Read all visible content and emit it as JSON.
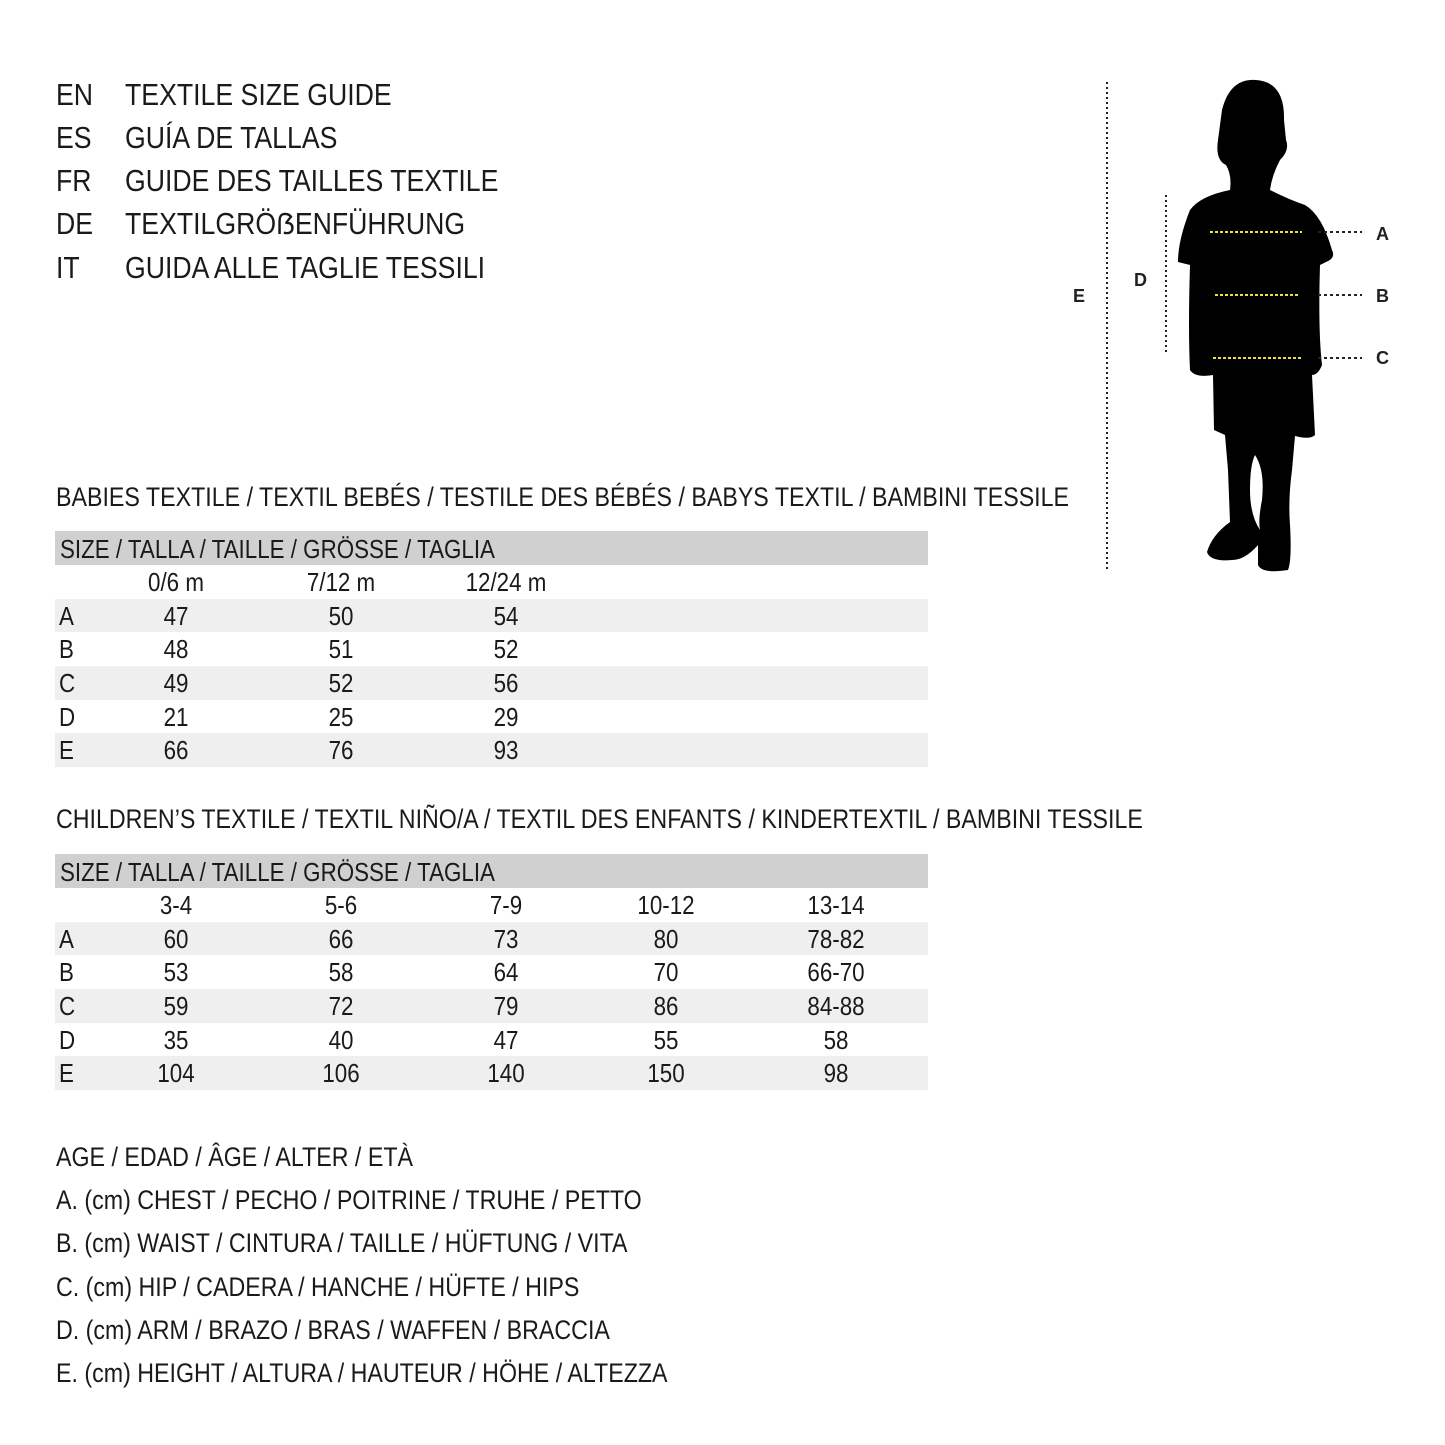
{
  "titles": [
    {
      "code": "EN",
      "text": "TEXTILE SIZE GUIDE"
    },
    {
      "code": "ES",
      "text": "GUÍA DE TALLAS"
    },
    {
      "code": "FR",
      "text": "GUIDE DES TAILLES TEXTILE"
    },
    {
      "code": "DE",
      "text": "TEXTILGRÖẞENFÜHRUNG"
    },
    {
      "code": "IT",
      "text": "GUIDA ALLE TAGLIE TESSILI"
    }
  ],
  "figure": {
    "labels": {
      "A": "A",
      "B": "B",
      "C": "C",
      "D": "D",
      "E": "E"
    },
    "accent": "#f2e03a"
  },
  "babies": {
    "heading": "BABIES TEXTILE / TEXTIL BEBÉS / TESTILE DES BÉBÉS / BABYS TEXTIL / BAMBINI TESSILE",
    "header": "SIZE / TALLA / TAILLE / GRÖSSE / TAGLIA",
    "columns": [
      "0/6 m",
      "7/12 m",
      "12/24 m"
    ],
    "rows": [
      {
        "label": "A",
        "values": [
          "47",
          "50",
          "54"
        ]
      },
      {
        "label": "B",
        "values": [
          "48",
          "51",
          "52"
        ]
      },
      {
        "label": "C",
        "values": [
          "49",
          "52",
          "56"
        ]
      },
      {
        "label": "D",
        "values": [
          "21",
          "25",
          "29"
        ]
      },
      {
        "label": "E",
        "values": [
          "66",
          "76",
          "93"
        ]
      }
    ]
  },
  "children": {
    "heading": "CHILDREN’S TEXTILE / TEXTIL NIÑO/A / TEXTIL DES ENFANTS / KINDERTEXTIL / BAMBINI TESSILE",
    "header": "SIZE / TALLA / TAILLE / GRÖSSE / TAGLIA",
    "columns": [
      "3-4",
      "5-6",
      "7-9",
      "10-12",
      "13-14"
    ],
    "rows": [
      {
        "label": "A",
        "values": [
          "60",
          "66",
          "73",
          "80",
          "78-82"
        ]
      },
      {
        "label": "B",
        "values": [
          "53",
          "58",
          "64",
          "70",
          "66-70"
        ]
      },
      {
        "label": "C",
        "values": [
          "59",
          "72",
          "79",
          "86",
          "84-88"
        ]
      },
      {
        "label": "D",
        "values": [
          "35",
          "40",
          "47",
          "55",
          "58"
        ]
      },
      {
        "label": "E",
        "values": [
          "104",
          "106",
          "140",
          "150",
          "98"
        ]
      }
    ]
  },
  "legend": [
    "AGE / EDAD / ÂGE / ALTER / ETÀ",
    "A. (cm) CHEST / PECHO / POITRINE / TRUHE / PETTO",
    "B. (cm) WAIST / CINTURA / TAILLE / HÜFTUNG / VITA",
    "C. (cm) HIP / CADERA / HANCHE / HÜFTE / HIPS",
    "D. (cm) ARM / BRAZO / BRAS / WAFFEN / BRACCIA",
    "E. (cm) HEIGHT / ALTURA / HAUTEUR / HÖHE / ALTEZZA"
  ]
}
